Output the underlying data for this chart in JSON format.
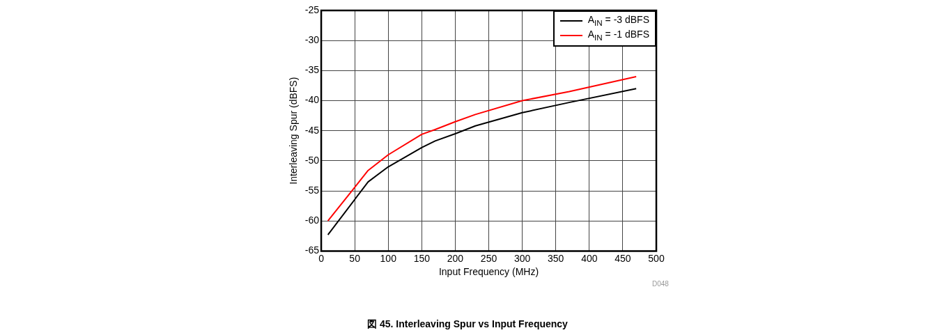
{
  "chart_data": {
    "type": "line",
    "title": "図 45. Interleaving Spur vs Input Frequency",
    "xlabel": "Input Frequency (MHz)",
    "ylabel": "Interleaving Spur (dBFS)",
    "x": [
      10,
      70,
      100,
      150,
      170,
      200,
      230,
      300,
      370,
      470
    ],
    "series": [
      {
        "name": "A$_{IN}$ = -3 dBFS",
        "color": "#000000",
        "values": [
          -62.3,
          -53.5,
          -51,
          -47.8,
          -46.7,
          -45.5,
          -44.2,
          -42,
          -40.3,
          -38
        ]
      },
      {
        "name": "A$_{IN}$ = -1 dBFS",
        "color": "#ff0000",
        "values": [
          -60,
          -51.6,
          -49,
          -45.6,
          -44.8,
          -43.5,
          -42.3,
          -40,
          -38.5,
          -36
        ]
      }
    ],
    "xlim": [
      0,
      500
    ],
    "xticks": [
      0,
      50,
      100,
      150,
      200,
      250,
      300,
      350,
      400,
      450,
      500
    ],
    "ylim": [
      -65,
      -25
    ],
    "yticks": [
      -65,
      -60,
      -55,
      -50,
      -45,
      -40,
      -35,
      -30,
      -25
    ],
    "grid": true,
    "legend": "top right",
    "marker": "none",
    "line_style": "solid",
    "annotations": [
      "D048"
    ]
  }
}
